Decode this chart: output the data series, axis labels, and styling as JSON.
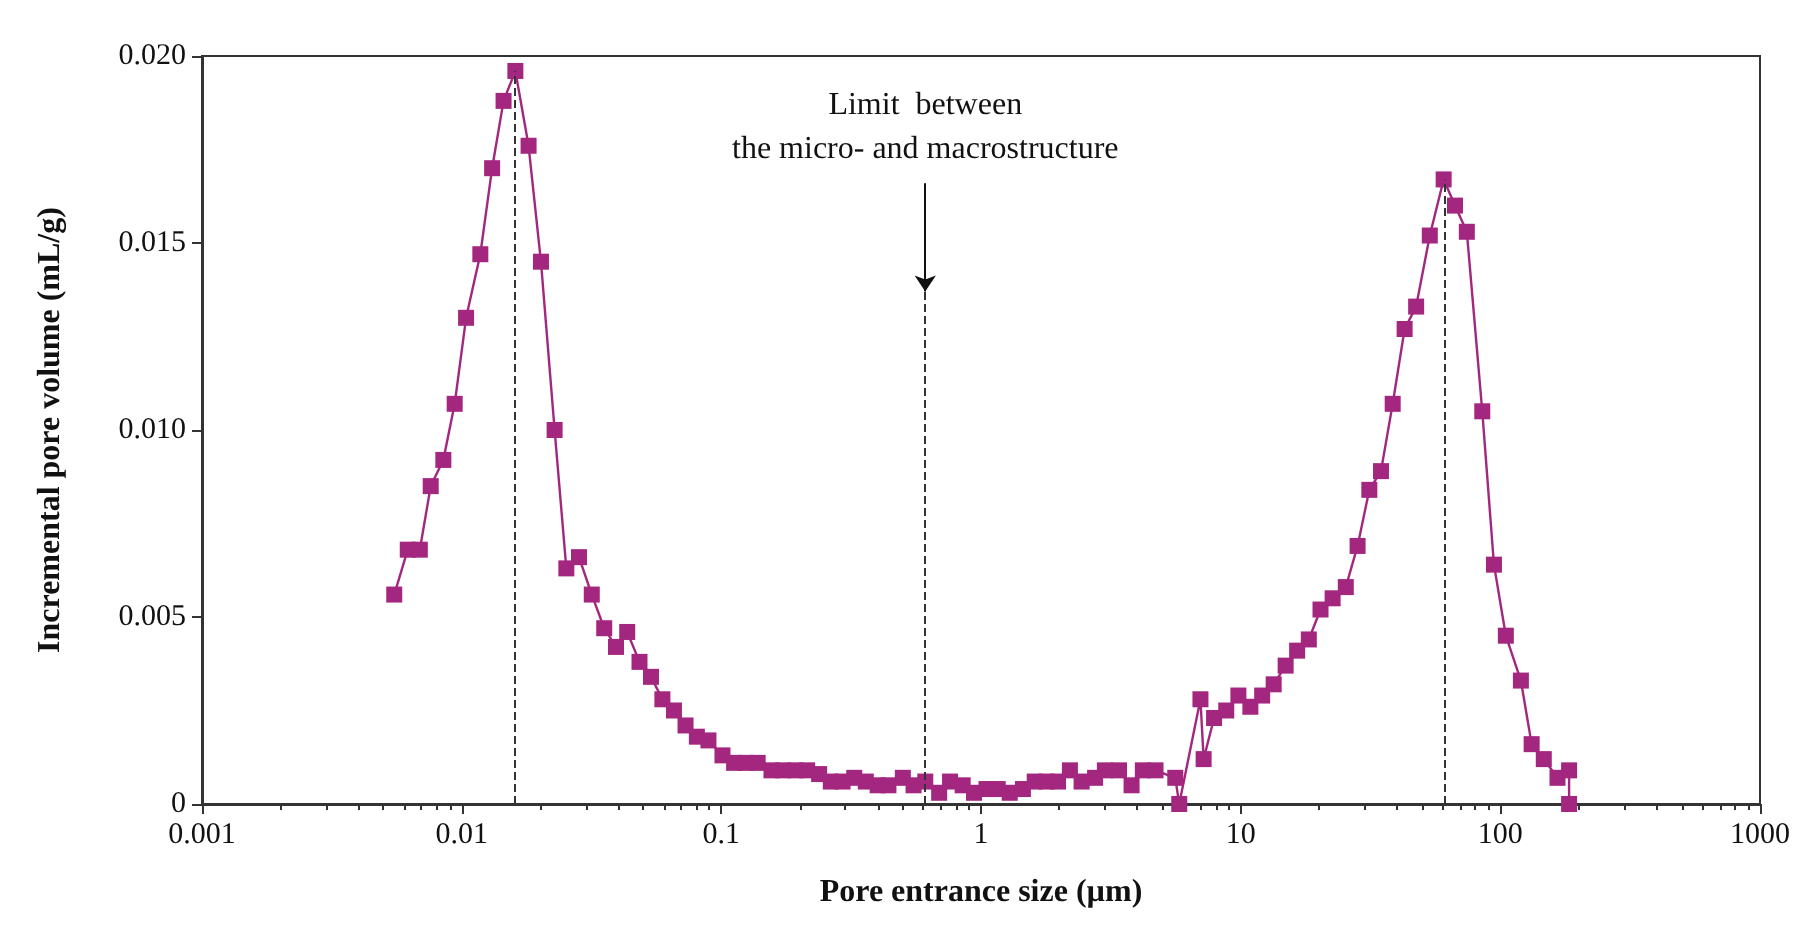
{
  "chart_data": {
    "type": "line",
    "xlabel": "Pore entrance size (µm)",
    "ylabel": "Incremental pore volume (mL/g)",
    "log": "x",
    "grid": false,
    "marker": "square",
    "line_style": "solid",
    "xlim": [
      0.001,
      1000
    ],
    "xticks": [
      0.001,
      0.01,
      0.1,
      1,
      10,
      100,
      1000
    ],
    "ylim": [
      0,
      0.02
    ],
    "yticks": [
      0,
      0.005,
      {
        "value": 0.01,
        "label": "0.010"
      },
      0.015,
      {
        "value": 0.02,
        "label": "0.020"
      }
    ],
    "series": [
      {
        "color": "#a3267f",
        "x": [
          0.0055,
          0.0062,
          0.0069,
          0.0076,
          0.0085,
          0.0094,
          0.0104,
          0.0118,
          0.0131,
          0.0145,
          0.0161,
          0.0181,
          0.0202,
          0.0228,
          0.0253,
          0.0283,
          0.0317,
          0.0354,
          0.0393,
          0.0434,
          0.0484,
          0.0536,
          0.0593,
          0.0657,
          0.0728,
          0.0805,
          0.0892,
          0.101,
          0.112,
          0.124,
          0.138,
          0.156,
          0.173,
          0.193,
          0.214,
          0.238,
          0.264,
          0.293,
          0.325,
          0.36,
          0.4,
          0.44,
          0.5,
          0.55,
          0.61,
          0.69,
          0.76,
          0.85,
          0.94,
          1.05,
          1.16,
          1.29,
          1.45,
          1.61,
          1.79,
          1.98,
          2.2,
          2.44,
          2.75,
          3.0,
          3.4,
          3.8,
          4.2,
          4.7,
          5.6,
          5.8,
          7.0,
          7.2,
          7.9,
          8.8,
          9.8,
          10.9,
          12.1,
          13.4,
          14.9,
          16.5,
          18.3,
          20.3,
          22.6,
          25.4,
          28.2,
          31.3,
          34.7,
          38.5,
          42.8,
          47.4,
          53.5,
          60.5,
          66.9,
          74.3,
          85.2,
          94.5,
          105,
          120,
          132,
          147,
          166,
          184,
          184
        ],
        "values": [
          0.0056,
          0.0068,
          0.0068,
          0.0085,
          0.0092,
          0.0107,
          0.013,
          0.0147,
          0.017,
          0.0188,
          0.0196,
          0.0176,
          0.0145,
          0.01,
          0.0063,
          0.0066,
          0.0056,
          0.0047,
          0.0042,
          0.0046,
          0.0038,
          0.0034,
          0.0028,
          0.0025,
          0.0021,
          0.0018,
          0.0017,
          0.0013,
          0.0011,
          0.0011,
          0.0011,
          0.0009,
          0.0009,
          0.0009,
          0.0009,
          0.0008,
          0.0006,
          0.0006,
          0.0007,
          0.0006,
          0.0005,
          0.0005,
          0.0007,
          0.0005,
          0.0006,
          0.0003,
          0.0006,
          0.0005,
          0.0003,
          0.0004,
          0.0004,
          0.0003,
          0.0004,
          0.0006,
          0.0006,
          0.0006,
          0.0009,
          0.0006,
          0.0007,
          0.0009,
          0.0009,
          0.0005,
          0.0009,
          0.0009,
          0.0007,
          0,
          0.0028,
          0.0012,
          0.0023,
          0.0025,
          0.0029,
          0.0026,
          0.0029,
          0.0032,
          0.0037,
          0.0041,
          0.0044,
          0.0052,
          0.0055,
          0.0058,
          0.0069,
          0.0084,
          0.0089,
          0.0107,
          0.0127,
          0.0133,
          0.0152,
          0.0167,
          0.016,
          0.0153,
          0.0105,
          0.0064,
          0.0045,
          0.0033,
          0.0016,
          0.0012,
          0.0007,
          0.0009,
          0
        ]
      }
    ],
    "ref_lines": [
      {
        "axis": "x",
        "value": 0.0161,
        "line_style": "dashed"
      },
      {
        "axis": "x",
        "value": 0.61,
        "line_style": "dashed"
      },
      {
        "axis": "x",
        "value": 60.5,
        "line_style": "dashed"
      }
    ],
    "annotations": [
      {
        "text": "Limit  between\nthe micro- and macrostructure",
        "x": 0.61,
        "y": 0.0137
      }
    ]
  }
}
